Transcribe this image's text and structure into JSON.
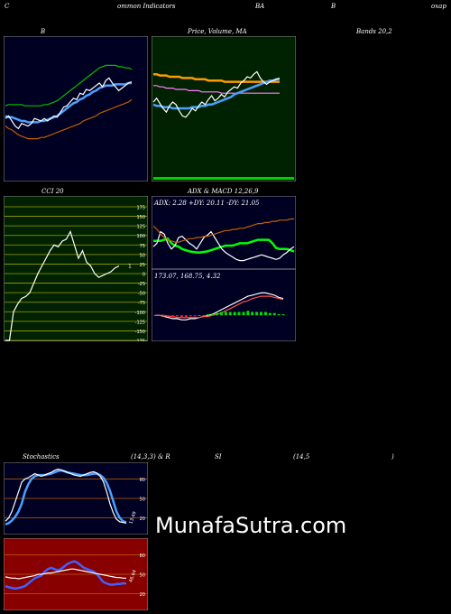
{
  "header": {
    "fragments": [
      "C",
      "ommon  Indicators",
      "BA",
      "B",
      "oxap"
    ],
    "row2": [
      "B",
      "Price,  Volume,  MA",
      "Bands 20,2"
    ],
    "row3": [
      "CCI 20",
      "ADX  & MACD 12,26,9"
    ],
    "row4": [
      "Stochastics",
      "(14,3,3) & R",
      "SI",
      "(14,5",
      ")"
    ]
  },
  "watermark": "MunafaSutra.com",
  "colors": {
    "bbands_bg": "#000022",
    "price_bg": "#002200",
    "cci_bg": "#002200",
    "adx_bg": "#000022",
    "stoch_bg": "#000022",
    "rsi_bg": "#880000"
  },
  "chart_data": [
    {
      "id": "bollinger",
      "type": "line",
      "x": [
        0,
        1,
        2,
        3,
        4,
        5,
        6,
        7,
        8,
        9,
        10,
        11,
        12,
        13,
        14,
        15,
        16,
        17,
        18,
        19,
        20,
        21,
        22,
        23,
        24,
        25,
        26,
        27,
        28,
        29,
        30,
        31,
        32,
        33,
        34,
        35,
        36,
        37,
        38,
        39
      ],
      "ylim": [
        0,
        100
      ],
      "series": [
        {
          "color": "#00c000",
          "values": [
            52,
            53,
            53,
            53,
            53,
            53,
            52,
            52,
            52,
            52,
            52,
            52,
            53,
            53,
            54,
            55,
            56,
            58,
            60,
            62,
            64,
            66,
            68,
            70,
            72,
            74,
            76,
            78,
            80,
            82,
            83,
            84,
            84,
            84,
            84,
            83,
            83,
            82,
            82,
            81
          ]
        },
        {
          "color": "#4aa0ff",
          "values": [
            44,
            43,
            43,
            42,
            41,
            40,
            40,
            39,
            39,
            39,
            39,
            40,
            40,
            41,
            42,
            43,
            44,
            46,
            48,
            50,
            52,
            54,
            55,
            57,
            58,
            60,
            61,
            63,
            64,
            66,
            67,
            68,
            68,
            68,
            69,
            69,
            69,
            69,
            70,
            70
          ]
        },
        {
          "color": "#ffffff",
          "values": [
            42,
            44,
            40,
            36,
            34,
            38,
            37,
            36,
            38,
            42,
            41,
            40,
            42,
            40,
            42,
            44,
            43,
            47,
            51,
            52,
            55,
            58,
            57,
            62,
            61,
            65,
            64,
            66,
            68,
            70,
            67,
            72,
            74,
            70,
            67,
            64,
            66,
            68,
            70,
            71
          ]
        },
        {
          "color": "#c06000",
          "values": [
            36,
            34,
            33,
            31,
            29,
            28,
            27,
            26,
            26,
            26,
            26,
            27,
            27,
            28,
            29,
            30,
            31,
            32,
            33,
            34,
            35,
            36,
            37,
            38,
            40,
            41,
            42,
            43,
            44,
            46,
            47,
            48,
            49,
            50,
            51,
            52,
            53,
            54,
            55,
            57
          ]
        }
      ]
    },
    {
      "id": "price",
      "type": "line",
      "x": [
        0,
        1,
        2,
        3,
        4,
        5,
        6,
        7,
        8,
        9,
        10,
        11,
        12,
        13,
        14,
        15,
        16,
        17,
        18,
        19,
        20,
        21,
        22,
        23,
        24,
        25,
        26,
        27,
        28,
        29,
        30,
        31,
        32,
        33,
        34,
        35,
        36,
        37,
        38,
        39
      ],
      "ylim": [
        0,
        100
      ],
      "series": [
        {
          "color": "#ff9900",
          "values": [
            77,
            77,
            76,
            76,
            76,
            75,
            75,
            75,
            75,
            74,
            74,
            74,
            74,
            73,
            73,
            73,
            73,
            72,
            72,
            72,
            72,
            72,
            71,
            71,
            71,
            71,
            71,
            71,
            71,
            71,
            71,
            71,
            71,
            71,
            71,
            71,
            71,
            71,
            71,
            71
          ]
        },
        {
          "color": "#ff80ff",
          "values": [
            68,
            68,
            67,
            67,
            66,
            66,
            66,
            65,
            65,
            65,
            65,
            64,
            64,
            64,
            64,
            63,
            63,
            63,
            63,
            63,
            63,
            62,
            62,
            62,
            62,
            62,
            62,
            62,
            62,
            62,
            62,
            62,
            62,
            62,
            62,
            62,
            62,
            62,
            62,
            62
          ]
        },
        {
          "color": "#4aa0ff",
          "values": [
            53,
            52,
            52,
            51,
            51,
            51,
            50,
            50,
            50,
            50,
            50,
            50,
            51,
            51,
            51,
            52,
            52,
            53,
            53,
            54,
            55,
            56,
            57,
            58,
            59,
            61,
            62,
            63,
            64,
            65,
            66,
            67,
            68,
            69,
            70,
            71,
            72,
            72,
            73,
            73
          ]
        },
        {
          "color": "#ffffff",
          "values": [
            55,
            58,
            54,
            50,
            47,
            52,
            55,
            53,
            48,
            44,
            43,
            46,
            50,
            48,
            52,
            55,
            53,
            57,
            60,
            56,
            58,
            61,
            59,
            63,
            65,
            67,
            66,
            70,
            72,
            75,
            74,
            77,
            79,
            74,
            71,
            69,
            71,
            72,
            73,
            74
          ]
        }
      ]
    },
    {
      "id": "cci",
      "type": "line",
      "x": [
        0,
        1,
        2,
        3,
        4,
        5,
        6,
        7,
        8,
        9,
        10,
        11,
        12,
        13,
        14,
        15,
        16,
        17,
        18,
        19,
        20,
        21,
        22,
        23,
        24,
        25,
        26,
        27,
        28
      ],
      "ylim": [
        -175,
        175
      ],
      "ticks": [
        175,
        150,
        125,
        100,
        75,
        50,
        25,
        0,
        -25,
        -50,
        -75,
        -100,
        -125,
        -150,
        -175
      ],
      "series": [
        {
          "color": "#ffffff",
          "values": [
            -175,
            -175,
            -100,
            -80,
            -65,
            -60,
            -50,
            -25,
            0,
            20,
            40,
            60,
            75,
            70,
            85,
            90,
            110,
            75,
            40,
            60,
            30,
            20,
            0,
            -10,
            -5,
            0,
            5,
            15,
            20
          ]
        }
      ],
      "last_label": "1"
    },
    {
      "id": "adx",
      "type": "line",
      "title": "ADX: 2.28  +DY: 20.11 -DY: 21.05",
      "x": [
        0,
        1,
        2,
        3,
        4,
        5,
        6,
        7,
        8,
        9,
        10,
        11,
        12,
        13,
        14,
        15,
        16,
        17,
        18,
        19,
        20,
        21,
        22,
        23,
        24,
        25,
        26,
        27,
        28,
        29,
        30,
        31,
        32,
        33,
        34,
        35,
        36,
        37,
        38,
        39
      ],
      "ylim": [
        0,
        100
      ],
      "series": [
        {
          "color": "#00ff00",
          "values": [
            44,
            44,
            44,
            46,
            48,
            40,
            36,
            34,
            30,
            28,
            26,
            25,
            24,
            24,
            25,
            26,
            28,
            30,
            32,
            34,
            36,
            36,
            36,
            38,
            40,
            40,
            40,
            42,
            44,
            46,
            46,
            46,
            46,
            40,
            32,
            30,
            30,
            30,
            28,
            26
          ]
        },
        {
          "color": "#ffffff",
          "values": [
            34,
            40,
            60,
            56,
            40,
            30,
            36,
            50,
            52,
            46,
            40,
            36,
            30,
            40,
            50,
            54,
            60,
            50,
            40,
            30,
            24,
            20,
            16,
            12,
            10,
            10,
            12,
            14,
            16,
            18,
            20,
            18,
            16,
            14,
            12,
            14,
            20,
            24,
            30,
            34
          ]
        },
        {
          "color": "#c06000",
          "values": [
            70,
            64,
            56,
            50,
            46,
            44,
            42,
            42,
            44,
            46,
            48,
            48,
            50,
            50,
            52,
            52,
            54,
            56,
            58,
            60,
            62,
            62,
            64,
            64,
            66,
            66,
            68,
            70,
            72,
            74,
            74,
            76,
            76,
            78,
            78,
            80,
            80,
            80,
            82,
            82
          ]
        }
      ]
    },
    {
      "id": "macd",
      "type": "line",
      "title": "173.07,  168.75,  4.32",
      "x": [
        0,
        1,
        2,
        3,
        4,
        5,
        6,
        7,
        8,
        9,
        10,
        11,
        12,
        13,
        14,
        15,
        16,
        17,
        18,
        19,
        20,
        21,
        22,
        23,
        24,
        25,
        26,
        27,
        28,
        29
      ],
      "ylim": [
        -20,
        30
      ],
      "series": [
        {
          "color": "#ffffff",
          "values": [
            0,
            0,
            -1,
            -2,
            -3,
            -3,
            -4,
            -4,
            -3,
            -3,
            -2,
            -1,
            0,
            1,
            3,
            5,
            7,
            9,
            11,
            13,
            15,
            17,
            18,
            19,
            20,
            20,
            19,
            18,
            16,
            15
          ]
        },
        {
          "color": "#ff5050",
          "values": [
            0,
            0,
            0,
            -1,
            -1,
            -2,
            -2,
            -2,
            -2,
            -2,
            -2,
            -1,
            -1,
            0,
            1,
            2,
            4,
            6,
            8,
            10,
            12,
            13,
            15,
            16,
            17,
            17,
            17,
            16,
            15,
            14
          ]
        }
      ],
      "histogram": [
        0,
        0,
        -1,
        -1,
        -2,
        -1,
        -2,
        -2,
        -1,
        -1,
        0,
        0,
        1,
        1,
        2,
        3,
        3,
        3,
        3,
        3,
        3,
        4,
        3,
        3,
        3,
        3,
        2,
        2,
        1,
        1
      ]
    },
    {
      "id": "stochastics",
      "type": "line",
      "x": [
        0,
        1,
        2,
        3,
        4,
        5,
        6,
        7,
        8,
        9,
        10,
        11,
        12,
        13,
        14,
        15,
        16,
        17,
        18,
        19,
        20,
        21,
        22,
        23,
        24,
        25,
        26,
        27,
        28,
        29,
        30,
        31,
        32,
        33,
        34,
        35,
        36,
        37
      ],
      "ylim": [
        0,
        100
      ],
      "ticks": [
        80,
        50,
        20
      ],
      "series": [
        {
          "color": "#4aa0ff",
          "values": [
            10,
            12,
            16,
            22,
            30,
            42,
            60,
            72,
            80,
            84,
            86,
            86,
            86,
            87,
            88,
            90,
            92,
            93,
            92,
            90,
            89,
            88,
            87,
            86,
            86,
            86,
            87,
            88,
            88,
            86,
            82,
            74,
            62,
            46,
            30,
            20,
            15,
            13
          ]
        },
        {
          "color": "#ffffff",
          "values": [
            15,
            20,
            30,
            45,
            60,
            75,
            80,
            82,
            85,
            88,
            86,
            84,
            86,
            88,
            90,
            93,
            95,
            94,
            92,
            90,
            88,
            86,
            85,
            84,
            86,
            88,
            90,
            91,
            89,
            84,
            76,
            60,
            42,
            28,
            18,
            14,
            13,
            12
          ]
        }
      ],
      "last_label": "13.49"
    },
    {
      "id": "rsi",
      "type": "line",
      "x": [
        0,
        1,
        2,
        3,
        4,
        5,
        6,
        7,
        8,
        9,
        10,
        11,
        12,
        13,
        14,
        15,
        16,
        17,
        18,
        19,
        20,
        21,
        22,
        23,
        24,
        25,
        26,
        27,
        28,
        29,
        30,
        31,
        32,
        33,
        34,
        35,
        36,
        37
      ],
      "ylim": [
        0,
        100
      ],
      "ticks": [
        80,
        50,
        20
      ],
      "series": [
        {
          "color": "#4060ff",
          "values": [
            32,
            30,
            29,
            28,
            29,
            30,
            32,
            36,
            40,
            44,
            46,
            48,
            54,
            58,
            60,
            58,
            56,
            58,
            62,
            66,
            68,
            70,
            68,
            64,
            60,
            58,
            56,
            54,
            50,
            44,
            38,
            36,
            34,
            34,
            35,
            35,
            36,
            36
          ]
        },
        {
          "color": "#ffffff",
          "values": [
            46,
            45,
            44,
            44,
            43,
            44,
            45,
            46,
            47,
            48,
            50,
            50,
            51,
            52,
            52,
            53,
            54,
            55,
            56,
            57,
            58,
            58,
            57,
            56,
            55,
            54,
            53,
            52,
            51,
            50,
            49,
            48,
            47,
            46,
            45,
            45,
            44,
            44
          ]
        }
      ],
      "last_label": "46.64"
    }
  ]
}
